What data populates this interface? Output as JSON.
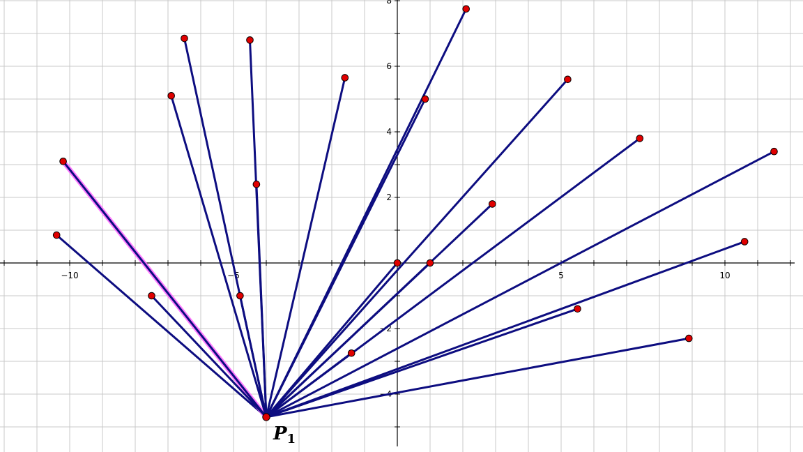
{
  "point_label": {
    "main": "P",
    "sub": "1"
  },
  "colors": {
    "grid": "#c8c8c8",
    "axis": "#000000",
    "segment": "#0d0d80",
    "point_fill": "#e00000",
    "point_stroke": "#000000",
    "highlight": "#ff66ff",
    "background": "#ffffff"
  },
  "chart_data": {
    "type": "scatter",
    "title": "",
    "xlabel": "",
    "ylabel": "",
    "xlim": [
      -12.0,
      12.3
    ],
    "ylim": [
      -5.6,
      8.1
    ],
    "x_ticks": [
      -10,
      -5,
      5,
      10
    ],
    "y_ticks": [
      -4,
      -2,
      2,
      4,
      6,
      8
    ],
    "grid": true,
    "hub": {
      "name": "P1",
      "x": -4.0,
      "y": -4.7
    },
    "highlighted_segment_index": 1,
    "points": [
      {
        "x": -10.4,
        "y": 0.85
      },
      {
        "x": -10.2,
        "y": 3.1
      },
      {
        "x": -7.5,
        "y": -1.0
      },
      {
        "x": -6.9,
        "y": 5.1
      },
      {
        "x": -6.5,
        "y": 6.85
      },
      {
        "x": -4.8,
        "y": -1.0
      },
      {
        "x": -4.5,
        "y": 6.8
      },
      {
        "x": -4.3,
        "y": 2.4
      },
      {
        "x": -1.6,
        "y": 5.65
      },
      {
        "x": -1.4,
        "y": -2.75
      },
      {
        "x": 0.0,
        "y": 0.0
      },
      {
        "x": 0.85,
        "y": 5.0
      },
      {
        "x": 1.0,
        "y": 0.0
      },
      {
        "x": 2.1,
        "y": 7.75
      },
      {
        "x": 2.9,
        "y": 1.8
      },
      {
        "x": 5.2,
        "y": 5.6
      },
      {
        "x": 5.5,
        "y": -1.4
      },
      {
        "x": 7.4,
        "y": 3.8
      },
      {
        "x": 8.9,
        "y": -2.3
      },
      {
        "x": 10.6,
        "y": 0.65
      },
      {
        "x": 11.5,
        "y": 3.4
      }
    ]
  }
}
